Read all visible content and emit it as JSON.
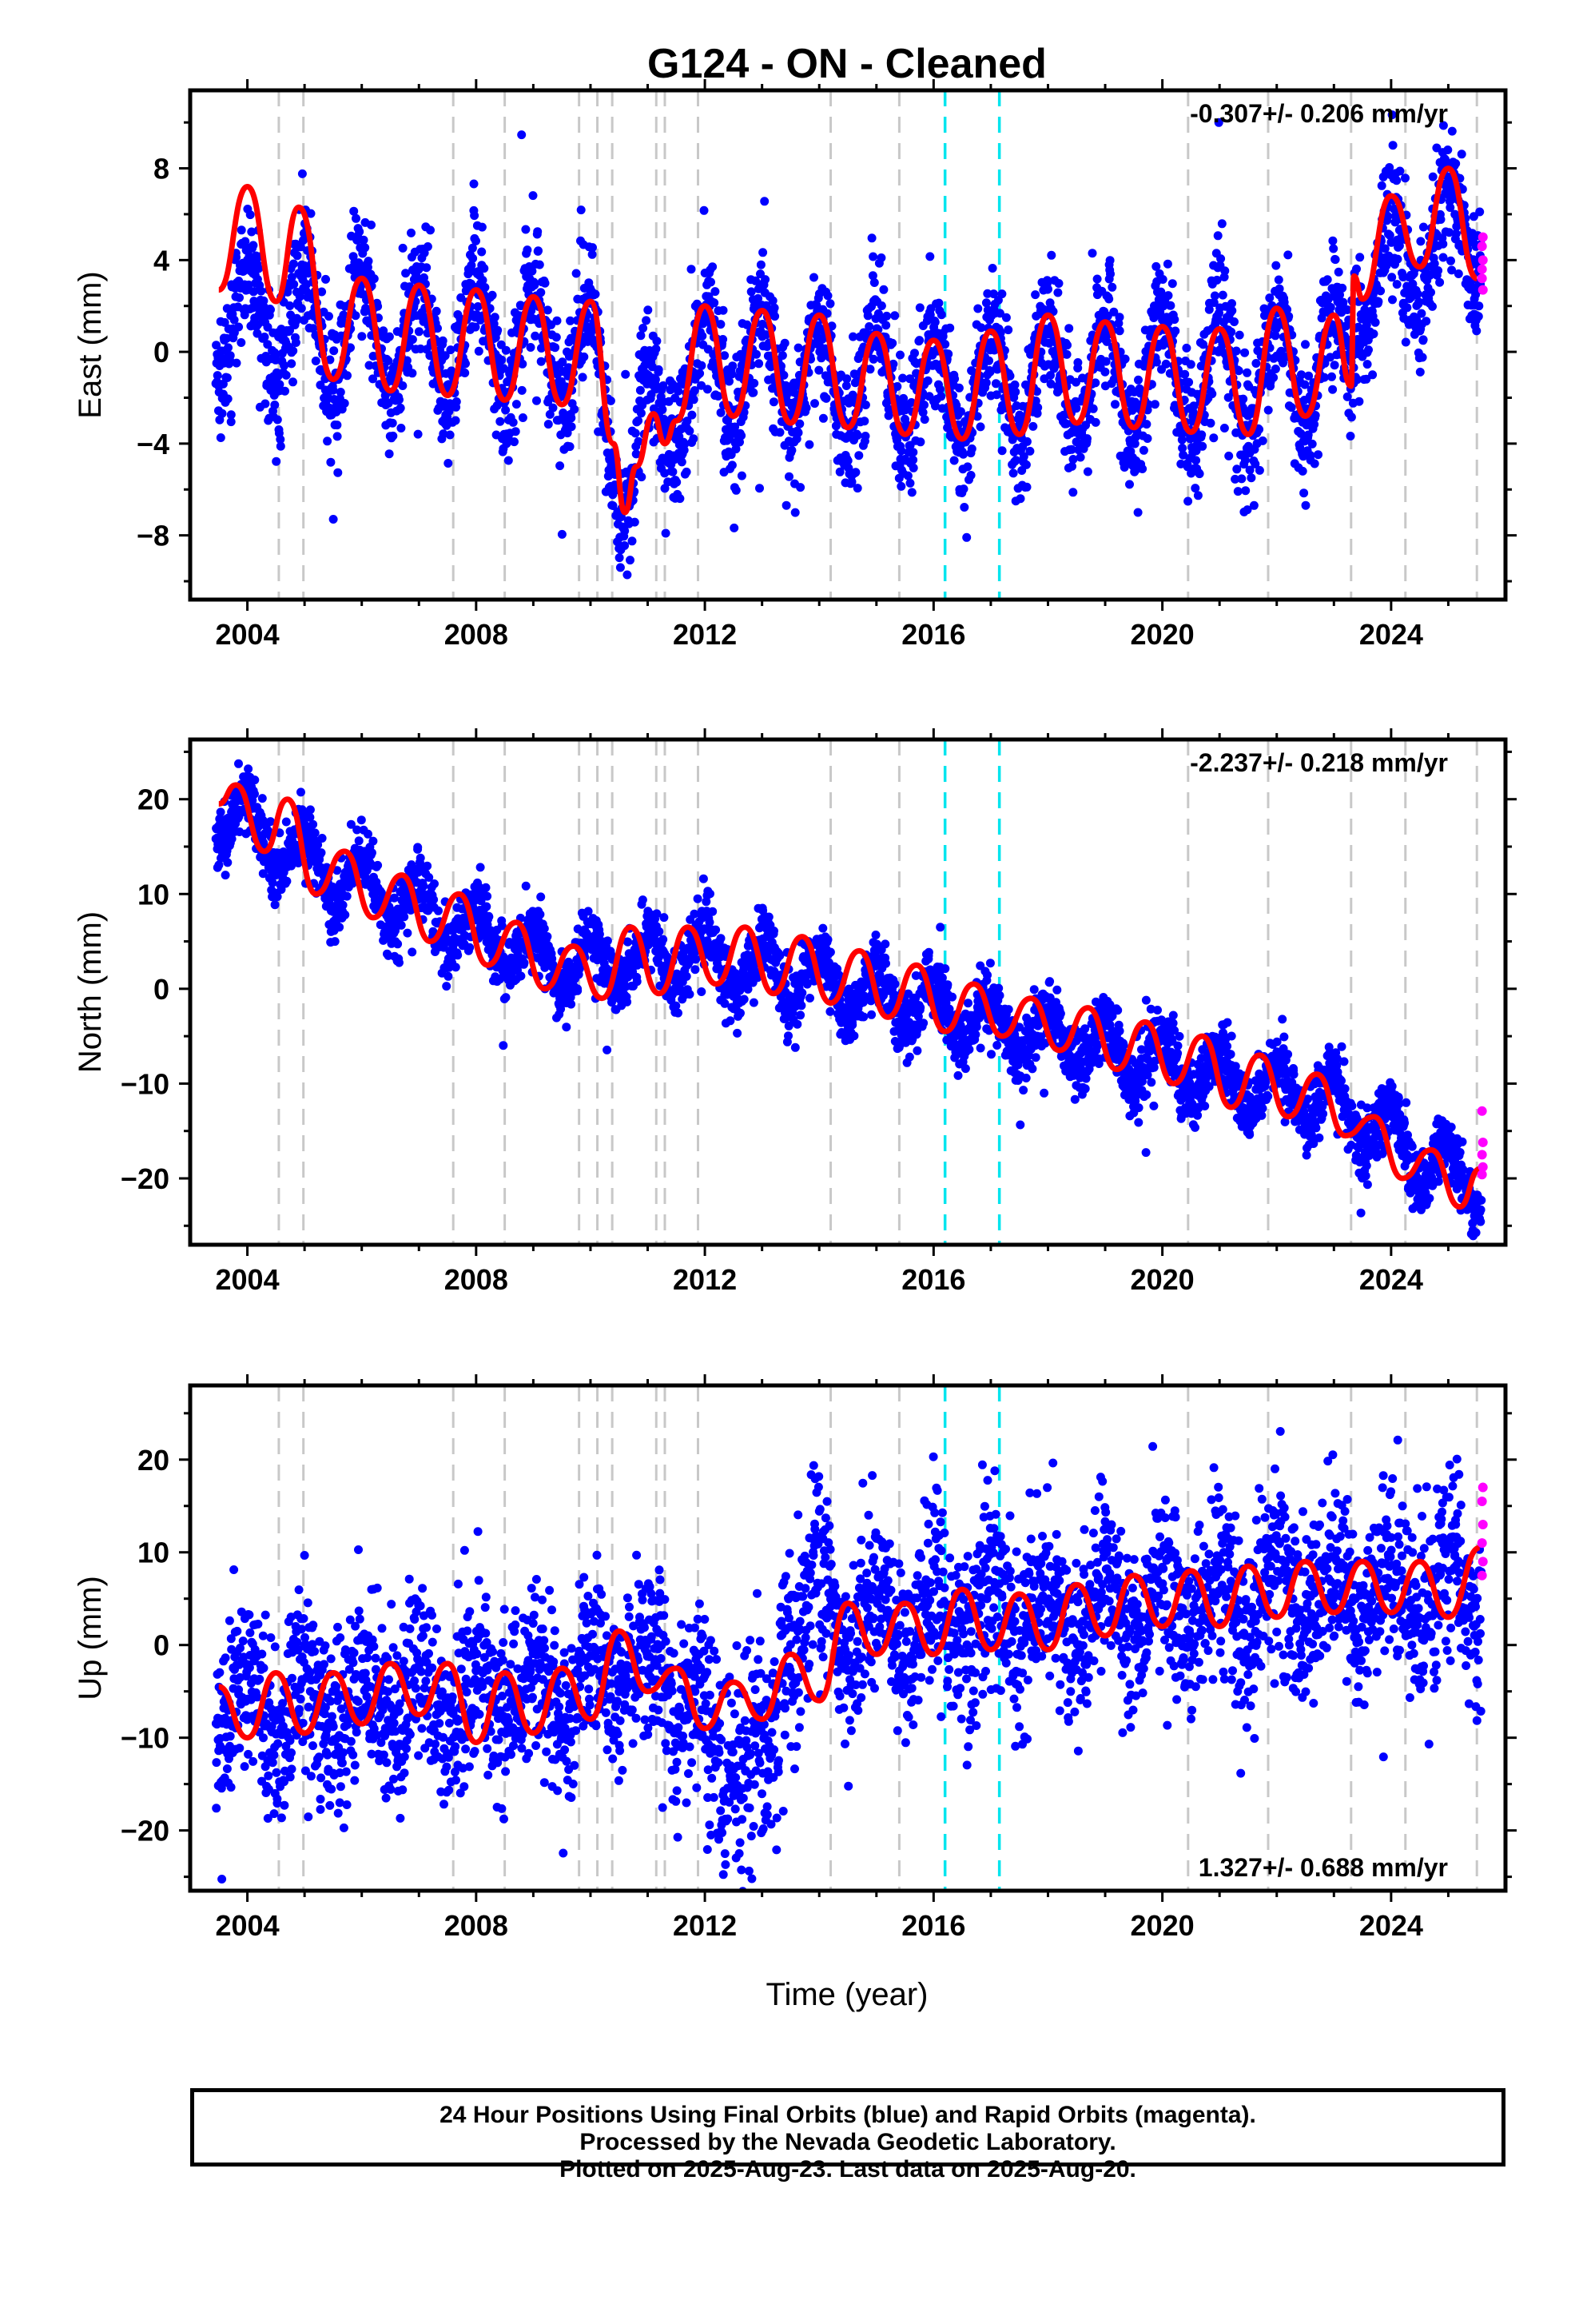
{
  "title": "G124  - ON - Cleaned",
  "xlabel": "Time (year)",
  "footer": {
    "line1": "24 Hour Positions Using Final Orbits (blue) and Rapid Orbits (magenta).",
    "line2": "Processed by the Nevada Geodetic Laboratory.",
    "line3": "Plotted on 2025-Aug-23. Last data on 2025-Aug-20."
  },
  "colors": {
    "final_orbits": "#0000ff",
    "rapid_orbits": "#ff00ff",
    "model": "#ff0000",
    "event_line": "#c8c8c8",
    "equipment_line": "#00e5ee"
  },
  "chart_data": [
    {
      "type": "scatter",
      "component": "east",
      "ylabel": "East (mm)",
      "rate_label": "-0.307+/- 0.206 mm/yr",
      "xlim": [
        2003.0,
        2026.0
      ],
      "ylim": [
        -10.8,
        11.4
      ],
      "xticks": [
        2004,
        2008,
        2012,
        2016,
        2020,
        2024
      ],
      "yticks": [
        -8,
        -4,
        0,
        4,
        8
      ],
      "grid": false,
      "rapid_points_y": [
        3.2,
        4.0,
        4.6,
        5.0,
        3.6,
        2.7
      ],
      "model_curve": {
        "x": [
          2003.5,
          2004.0,
          2004.5,
          2004.9,
          2005.5,
          2006.0,
          2006.5,
          2007.0,
          2007.5,
          2008.0,
          2008.5,
          2009.0,
          2009.5,
          2010.0,
          2010.4,
          2010.6,
          2010.8,
          2011.1,
          2011.3,
          2011.5,
          2012.0,
          2012.5,
          2013.0,
          2013.5,
          2014.0,
          2014.5,
          2015.0,
          2015.5,
          2016.0,
          2016.5,
          2017.0,
          2017.5,
          2018.0,
          2018.5,
          2019.0,
          2019.5,
          2020.0,
          2020.5,
          2021.0,
          2021.5,
          2022.0,
          2022.5,
          2023.0,
          2023.3,
          2023.35,
          2023.5,
          2024.0,
          2024.5,
          2025.0,
          2025.5
        ],
        "y": [
          2.7,
          7.2,
          2.2,
          6.3,
          -1.2,
          3.2,
          -1.7,
          2.9,
          -1.9,
          2.7,
          -2.1,
          2.4,
          -2.3,
          2.2,
          -4.0,
          -7.0,
          -5.0,
          -2.7,
          -4.0,
          -3.0,
          2.0,
          -2.8,
          1.8,
          -3.1,
          1.6,
          -3.3,
          0.8,
          -3.6,
          0.5,
          -3.8,
          0.9,
          -3.6,
          1.6,
          -3.1,
          1.3,
          -3.3,
          1.1,
          -3.5,
          1.0,
          -3.6,
          1.9,
          -2.8,
          1.6,
          -1.5,
          3.3,
          2.3,
          6.8,
          3.7,
          8.0,
          3.2
        ]
      },
      "trend_knots": [
        [
          2003.5,
          1.6
        ],
        [
          2005.5,
          1.0
        ],
        [
          2010.0,
          0.0
        ],
        [
          2010.6,
          -5.5
        ],
        [
          2011.3,
          -2.5
        ],
        [
          2012.0,
          -0.5
        ],
        [
          2016.0,
          -1.6
        ],
        [
          2019.0,
          -1.2
        ],
        [
          2023.3,
          -0.6
        ],
        [
          2023.35,
          2.8
        ],
        [
          2025.6,
          5.6
        ]
      ],
      "seasonal_amp": 2.5,
      "scatter_sd": 1.4,
      "scatter_extra": [],
      "x_data_start": 2003.45,
      "x_data_end": 2025.58
    },
    {
      "type": "scatter",
      "component": "north",
      "ylabel": "North (mm)",
      "rate_label": "-2.237+/- 0.218 mm/yr",
      "xlim": [
        2003.0,
        2026.0
      ],
      "ylim": [
        -27.0,
        26.3
      ],
      "xticks": [
        2004,
        2008,
        2012,
        2016,
        2020,
        2024
      ],
      "yticks": [
        -20,
        -10,
        0,
        10,
        20
      ],
      "grid": false,
      "rapid_points_y": [
        -12.9,
        -16.2,
        -17.5,
        -18.8,
        -19.6
      ],
      "model_curve": {
        "x": [
          2003.5,
          2003.8,
          2004.3,
          2004.7,
          2005.2,
          2005.7,
          2006.2,
          2006.7,
          2007.2,
          2007.7,
          2008.2,
          2008.7,
          2009.2,
          2009.7,
          2010.2,
          2010.7,
          2011.2,
          2011.7,
          2012.2,
          2012.7,
          2013.2,
          2013.7,
          2014.2,
          2014.7,
          2015.2,
          2015.7,
          2016.2,
          2016.7,
          2017.2,
          2017.7,
          2018.2,
          2018.7,
          2019.2,
          2019.7,
          2020.2,
          2020.7,
          2021.2,
          2021.7,
          2022.2,
          2022.7,
          2023.2,
          2023.7,
          2024.2,
          2024.7,
          2025.2,
          2025.55
        ],
        "y": [
          19.5,
          21.5,
          14.5,
          20.0,
          10.0,
          14.5,
          7.5,
          12.0,
          5.0,
          10.0,
          2.5,
          7.0,
          0.0,
          4.5,
          -1.0,
          6.5,
          -0.5,
          6.5,
          0.5,
          6.5,
          -0.5,
          5.5,
          -1.5,
          4.0,
          -3.0,
          2.5,
          -4.5,
          0.5,
          -5.0,
          -1.0,
          -6.5,
          -2.0,
          -8.5,
          -3.5,
          -10.0,
          -5.0,
          -12.5,
          -7.0,
          -13.5,
          -9.0,
          -15.5,
          -13.5,
          -20.0,
          -17.0,
          -23.0,
          -19.0
        ]
      },
      "trend_knots": [
        [
          2003.5,
          19.0
        ],
        [
          2005.5,
          12.0
        ],
        [
          2009.5,
          2.5
        ],
        [
          2012.0,
          3.5
        ],
        [
          2016.0,
          -2.0
        ],
        [
          2020.0,
          -8.0
        ],
        [
          2023.0,
          -12.0
        ],
        [
          2025.6,
          -21.5
        ]
      ],
      "seasonal_amp": 2.8,
      "scatter_sd": 1.7,
      "scatter_extra": [],
      "x_data_start": 2003.45,
      "x_data_end": 2025.58
    },
    {
      "type": "scatter",
      "component": "up",
      "ylabel": "Up (mm)",
      "rate_label": "1.327+/- 0.688 mm/yr",
      "xlim": [
        2003.0,
        2026.0
      ],
      "ylim": [
        -26.5,
        28.0
      ],
      "xticks": [
        2004,
        2008,
        2012,
        2016,
        2020,
        2024
      ],
      "yticks": [
        -20,
        -10,
        0,
        10,
        20
      ],
      "grid": false,
      "rapid_points_y": [
        7.5,
        9.0,
        11.0,
        13.0,
        15.5,
        17.0
      ],
      "model_curve": {
        "x": [
          2003.5,
          2004.0,
          2004.5,
          2005.0,
          2005.5,
          2006.0,
          2006.5,
          2007.0,
          2007.5,
          2008.0,
          2008.5,
          2009.0,
          2009.5,
          2010.0,
          2010.5,
          2011.0,
          2011.5,
          2012.0,
          2012.5,
          2013.0,
          2013.5,
          2014.0,
          2014.5,
          2015.0,
          2015.5,
          2016.0,
          2016.5,
          2017.0,
          2017.5,
          2018.0,
          2018.5,
          2019.0,
          2019.5,
          2020.0,
          2020.5,
          2021.0,
          2021.5,
          2022.0,
          2022.5,
          2023.0,
          2023.5,
          2024.0,
          2024.5,
          2025.0,
          2025.55
        ],
        "y": [
          -4.5,
          -10.0,
          -3.0,
          -9.5,
          -3.0,
          -8.5,
          -2.0,
          -7.5,
          -2.0,
          -10.5,
          -3.0,
          -9.5,
          -2.5,
          -8.0,
          1.5,
          -5.0,
          -2.5,
          -9.0,
          -4.0,
          -8.0,
          -1.0,
          -6.0,
          4.5,
          -1.0,
          4.5,
          -1.0,
          6.0,
          -0.5,
          5.5,
          -0.5,
          6.5,
          1.0,
          7.5,
          2.0,
          8.0,
          2.0,
          8.5,
          3.0,
          9.0,
          3.5,
          9.0,
          3.5,
          9.0,
          3.0,
          10.5
        ]
      },
      "trend_knots": [
        [
          2003.5,
          -7.0
        ],
        [
          2010.0,
          -5.0
        ],
        [
          2010.5,
          -1.5
        ],
        [
          2011.5,
          -5.0
        ],
        [
          2013.5,
          -4.0
        ],
        [
          2014.0,
          2.0
        ],
        [
          2016.0,
          2.5
        ],
        [
          2020.0,
          4.5
        ],
        [
          2025.6,
          6.5
        ]
      ],
      "seasonal_amp": 3.5,
      "scatter_sd": 4.8,
      "scatter_extra": [
        [
          2012.0,
          2013.3,
          -8.0,
          6.5
        ],
        [
          2013.3,
          2014.0,
          4.0,
          5.5
        ]
      ],
      "x_data_start": 2003.45,
      "x_data_end": 2025.58
    }
  ],
  "event_lines": [
    2004.55,
    2004.98,
    2007.6,
    2008.5,
    2009.8,
    2010.12,
    2010.38,
    2011.15,
    2011.3,
    2011.88,
    2014.2,
    2015.4,
    2020.45,
    2021.85,
    2023.3,
    2024.25,
    2025.5
  ],
  "equipment_lines": [
    2016.2,
    2017.15
  ]
}
